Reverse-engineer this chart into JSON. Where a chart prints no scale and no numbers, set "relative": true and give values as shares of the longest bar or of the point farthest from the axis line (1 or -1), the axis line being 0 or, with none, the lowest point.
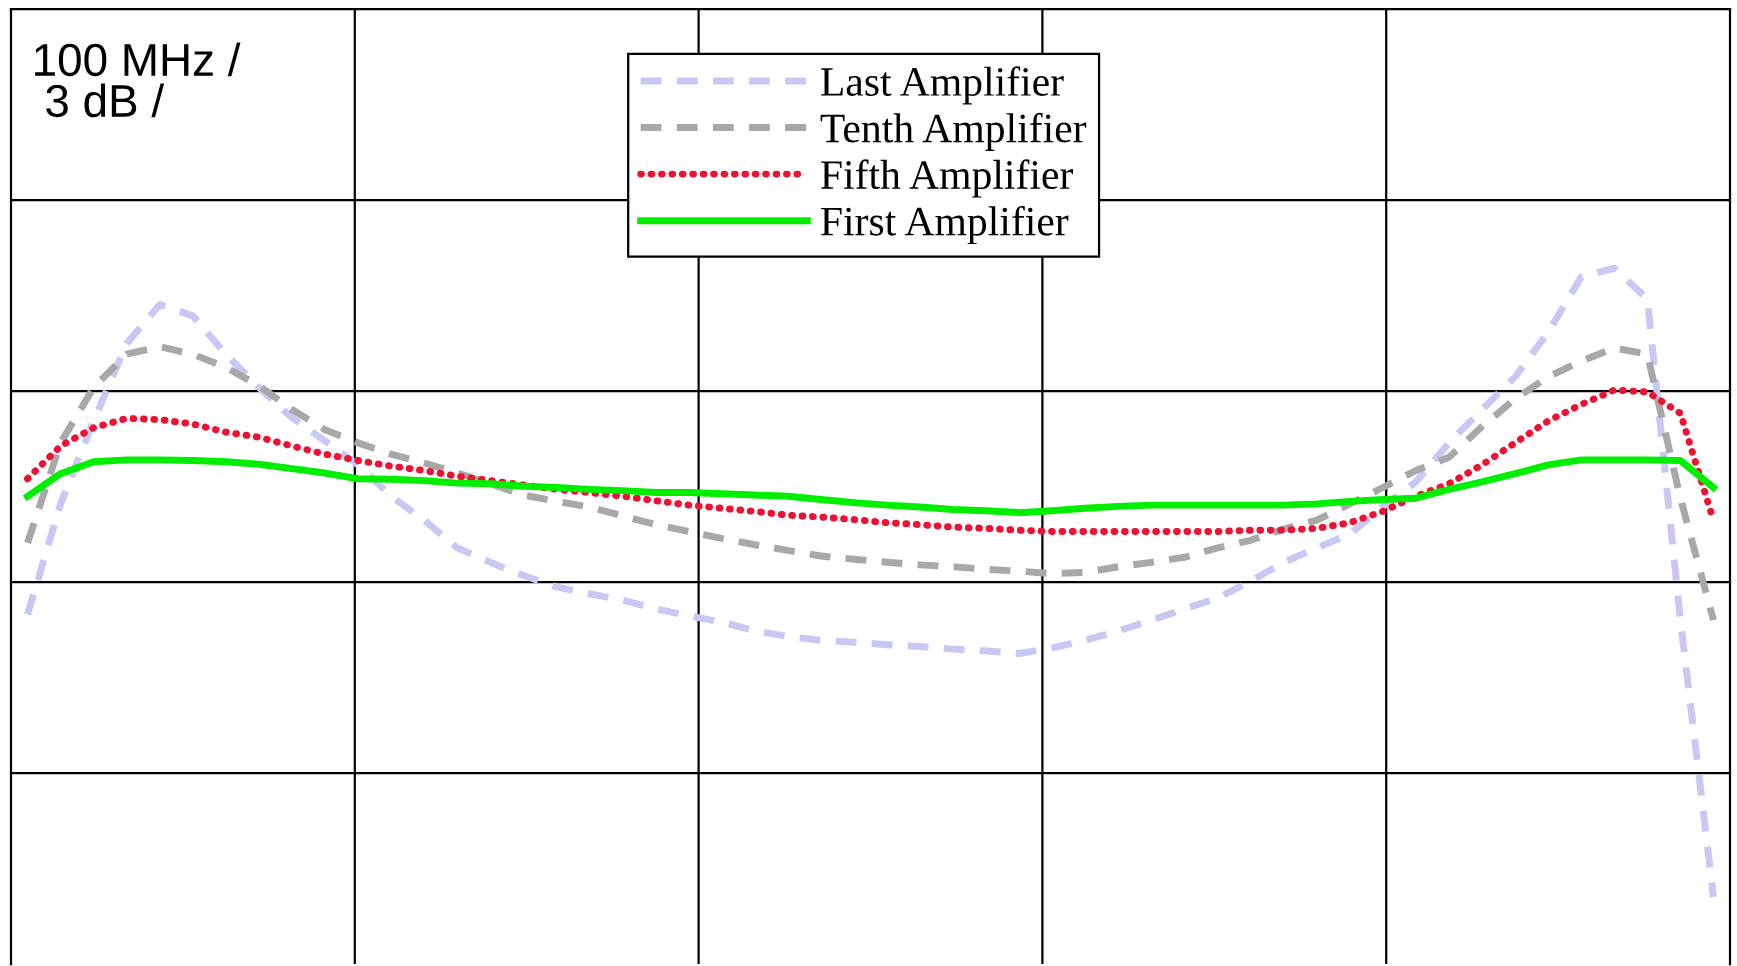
{
  "chart_data": {
    "type": "line",
    "relative": true,
    "grid": true,
    "legend": "top",
    "marker": "none",
    "annotations": [
      "100 MHz /",
      "3 dB /"
    ],
    "categories": [
      null,
      null,
      null,
      null,
      null,
      null,
      null,
      null,
      null,
      null,
      null,
      null,
      null,
      null,
      null,
      null,
      null,
      null,
      null,
      null,
      null,
      null,
      null,
      null,
      null,
      null,
      null,
      null,
      null,
      null,
      null,
      null,
      null,
      null,
      null,
      null,
      null,
      null,
      null,
      null,
      null,
      null,
      null,
      null,
      null,
      null,
      null,
      null,
      null,
      null,
      null,
      null
    ],
    "series": [
      {
        "name": "Last Amplifier",
        "color": "#c8c8f5",
        "line_style": "dashed",
        "values": [
          0.449,
          0.625,
          0.757,
          0.88,
          0.942,
          0.924,
          0.863,
          0.81,
          0.762,
          0.725,
          0.687,
          0.637,
          0.599,
          0.555,
          0.532,
          0.511,
          0.493,
          0.482,
          0.472,
          0.458,
          0.447,
          0.437,
          0.423,
          0.414,
          0.408,
          0.405,
          0.401,
          0.398,
          0.394,
          0.391,
          0.387,
          0.396,
          0.408,
          0.423,
          0.44,
          0.458,
          0.475,
          0.502,
          0.532,
          0.555,
          0.577,
          0.62,
          0.66,
          0.722,
          0.775,
          0.827,
          0.898,
          0.986,
          1,
          0.951,
          0.44,
          0
        ]
      },
      {
        "name": "Tenth Amplifier",
        "color": "#a8a8a8",
        "line_style": "dashed",
        "values": [
          0.563,
          0.722,
          0.81,
          0.863,
          0.875,
          0.863,
          0.842,
          0.813,
          0.775,
          0.743,
          0.722,
          0.704,
          0.69,
          0.674,
          0.657,
          0.639,
          0.629,
          0.62,
          0.606,
          0.592,
          0.581,
          0.57,
          0.56,
          0.551,
          0.542,
          0.537,
          0.532,
          0.528,
          0.525,
          0.521,
          0.518,
          0.514,
          0.516,
          0.525,
          0.532,
          0.54,
          0.555,
          0.567,
          0.585,
          0.599,
          0.625,
          0.651,
          0.678,
          0.699,
          0.748,
          0.792,
          0.827,
          0.852,
          0.873,
          0.863,
          0.634,
          0.44
        ]
      },
      {
        "name": "Fifth Amplifier",
        "color": "#ee1133",
        "line_style": "dotted",
        "values": [
          0.665,
          0.717,
          0.746,
          0.761,
          0.759,
          0.752,
          0.739,
          0.731,
          0.717,
          0.704,
          0.694,
          0.685,
          0.678,
          0.669,
          0.662,
          0.655,
          0.648,
          0.643,
          0.637,
          0.63,
          0.623,
          0.618,
          0.613,
          0.607,
          0.604,
          0.6,
          0.595,
          0.592,
          0.588,
          0.586,
          0.583,
          0.581,
          0.581,
          0.581,
          0.581,
          0.581,
          0.581,
          0.583,
          0.583,
          0.586,
          0.595,
          0.613,
          0.637,
          0.657,
          0.687,
          0.722,
          0.757,
          0.783,
          0.806,
          0.803,
          0.769,
          0.599
        ]
      },
      {
        "name": "First Amplifier",
        "color": "#00ee00",
        "line_style": "solid",
        "values": [
          0.637,
          0.673,
          0.692,
          0.695,
          0.695,
          0.694,
          0.692,
          0.688,
          0.681,
          0.674,
          0.665,
          0.664,
          0.662,
          0.658,
          0.657,
          0.653,
          0.651,
          0.648,
          0.646,
          0.643,
          0.643,
          0.641,
          0.639,
          0.637,
          0.632,
          0.627,
          0.623,
          0.62,
          0.616,
          0.614,
          0.611,
          0.614,
          0.618,
          0.621,
          0.623,
          0.623,
          0.623,
          0.623,
          0.623,
          0.625,
          0.629,
          0.632,
          0.634,
          0.648,
          0.66,
          0.673,
          0.687,
          0.695,
          0.695,
          0.695,
          0.694,
          0.651
        ]
      }
    ]
  }
}
